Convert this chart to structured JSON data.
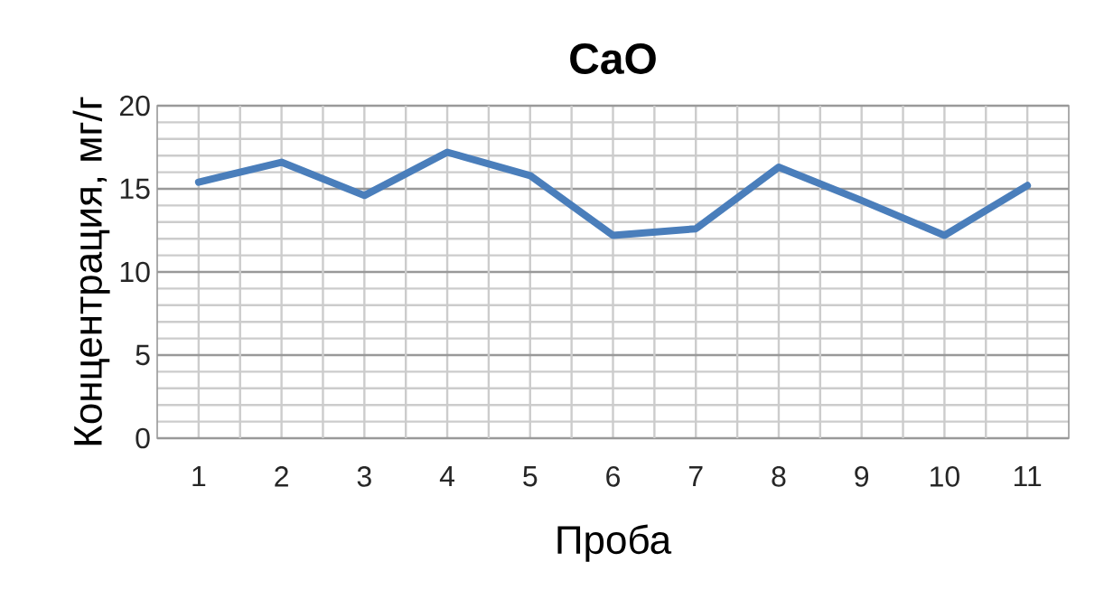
{
  "chart_data": {
    "type": "line",
    "title": "CaO",
    "xlabel": "Проба",
    "ylabel": "Концентрация, мг/г",
    "categories": [
      "1",
      "2",
      "3",
      "4",
      "5",
      "6",
      "7",
      "8",
      "9",
      "10",
      "11"
    ],
    "series": [
      {
        "color": "#4a7ebb",
        "values": [
          15.4,
          16.6,
          14.6,
          17.2,
          15.8,
          12.2,
          12.6,
          16.3,
          14.3,
          12.2,
          15.2
        ]
      }
    ],
    "ylim": [
      0,
      20
    ],
    "yticks": [
      0,
      5,
      10,
      15,
      20
    ],
    "grid": true,
    "line_style": "solid"
  }
}
